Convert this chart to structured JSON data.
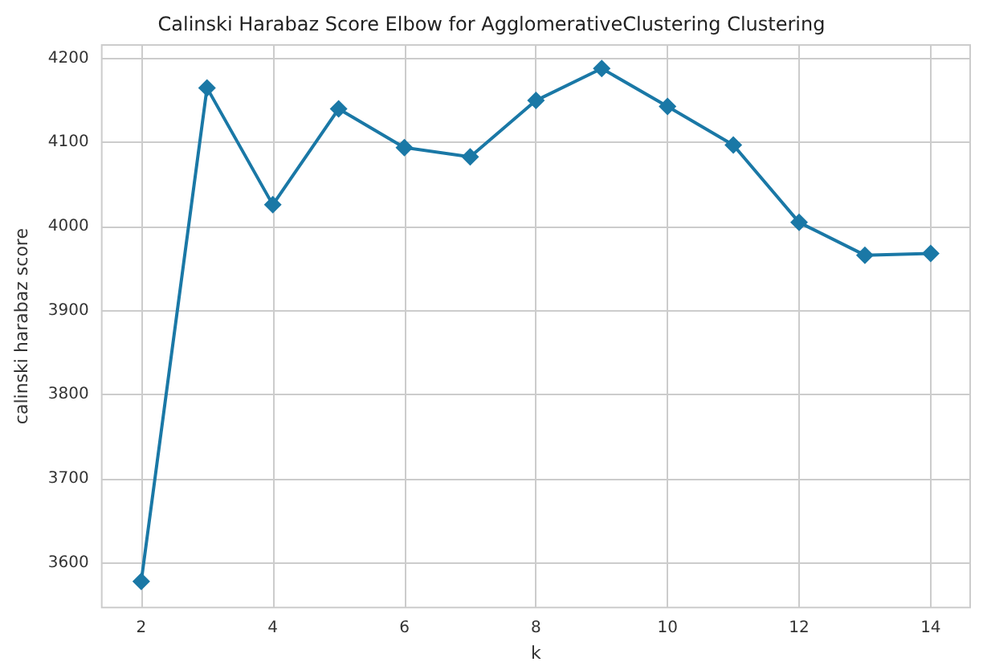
{
  "chart_data": {
    "type": "line",
    "title": "Calinski Harabaz Score Elbow for AgglomerativeClustering Clustering",
    "xlabel": "k",
    "ylabel": "calinski harabaz score",
    "x": [
      2,
      3,
      4,
      5,
      6,
      7,
      8,
      9,
      10,
      11,
      12,
      13,
      14
    ],
    "series": [
      {
        "color": "#1a78a6",
        "values": [
          3578,
          4165,
          4026,
          4140,
          4094,
          4083,
          4150,
          4188,
          4143,
          4097,
          4005,
          3966,
          3968
        ]
      }
    ],
    "xlim": [
      1.4,
      14.6
    ],
    "xticks": [
      2,
      4,
      6,
      8,
      10,
      12,
      14
    ],
    "ylim": [
      3547,
      4216
    ],
    "yticks": [
      3600,
      3700,
      3800,
      3900,
      4000,
      4100,
      4200
    ],
    "grid": true,
    "marker": "diamond",
    "line_style": "solid"
  }
}
